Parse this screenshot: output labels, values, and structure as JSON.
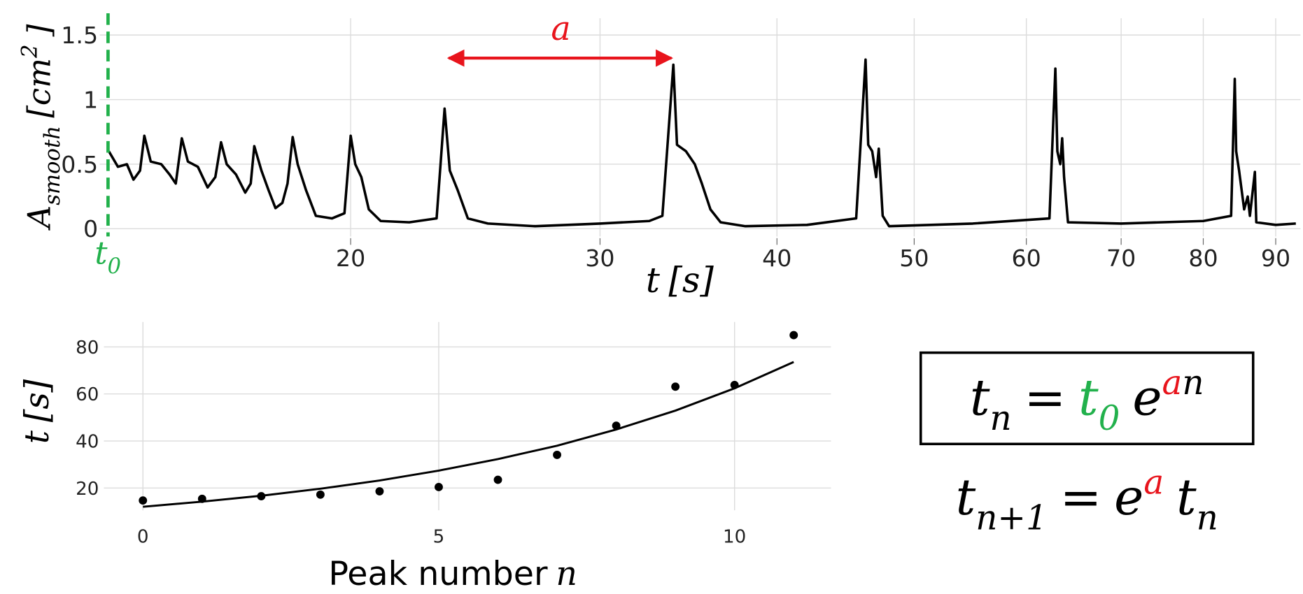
{
  "chart_data": [
    {
      "type": "line",
      "xscale": "log",
      "grid": true,
      "x": [
        13.5,
        13.7,
        13.9,
        14.05,
        14.2,
        14.3,
        14.45,
        14.7,
        14.9,
        15.05,
        15.2,
        15.35,
        15.6,
        15.85,
        16.05,
        16.2,
        16.35,
        16.6,
        16.85,
        17.0,
        17.1,
        17.3,
        17.5,
        17.7,
        17.9,
        18.05,
        18.2,
        18.35,
        18.6,
        18.9,
        19.4,
        19.8,
        20.0,
        20.15,
        20.35,
        20.6,
        21,
        22,
        23.0,
        23.3,
        23.5,
        23.8,
        24.2,
        25,
        27,
        30,
        32.5,
        33.2,
        33.8,
        34.0,
        34.5,
        35,
        35.4,
        35.9,
        36.5,
        38,
        42,
        45.5,
        46.2,
        46.4,
        46.7,
        47.0,
        47.2,
        47.5,
        48,
        55,
        62.3,
        62.9,
        63.1,
        63.4,
        63.6,
        63.8,
        64.2,
        70,
        80,
        83.7,
        84.2,
        84.4,
        84.8,
        85.5,
        86,
        86.3,
        87,
        87.2,
        90,
        93
      ],
      "series": [
        {
          "color": "#000000",
          "values": [
            0.6,
            0.48,
            0.5,
            0.38,
            0.45,
            0.72,
            0.52,
            0.5,
            0.42,
            0.35,
            0.7,
            0.52,
            0.48,
            0.32,
            0.4,
            0.67,
            0.5,
            0.42,
            0.28,
            0.35,
            0.64,
            0.45,
            0.3,
            0.16,
            0.2,
            0.35,
            0.71,
            0.5,
            0.3,
            0.1,
            0.08,
            0.12,
            0.72,
            0.5,
            0.4,
            0.15,
            0.06,
            0.05,
            0.08,
            0.93,
            0.45,
            0.3,
            0.08,
            0.04,
            0.02,
            0.04,
            0.06,
            0.1,
            1.27,
            0.65,
            0.6,
            0.5,
            0.35,
            0.15,
            0.05,
            0.02,
            0.03,
            0.08,
            1.31,
            0.65,
            0.6,
            0.4,
            0.62,
            0.1,
            0.02,
            0.04,
            0.08,
            1.24,
            0.6,
            0.5,
            0.7,
            0.4,
            0.05,
            0.04,
            0.06,
            0.1,
            1.16,
            0.6,
            0.45,
            0.15,
            0.25,
            0.1,
            0.44,
            0.05,
            0.03,
            0.04
          ]
        }
      ],
      "xlim": [
        13.3,
        93.7
      ],
      "xticks": [
        20,
        30,
        40,
        50,
        60,
        70,
        80,
        90
      ],
      "ylim": [
        -0.06,
        1.63
      ],
      "yticks": [
        0,
        0.5,
        1,
        1.5
      ],
      "x_label": [
        {
          "t": "t"
        },
        {
          "t": "[s]"
        }
      ],
      "y_label": [
        {
          "t": "A"
        },
        {
          "sub": "smooth"
        },
        {
          "t": "[cm"
        },
        {
          "sup": "2"
        },
        {
          "t": "]"
        }
      ],
      "t0_label": [
        {
          "t": "t",
          "color": "#22b14c"
        },
        {
          "sub": "0",
          "color": "#22b14c"
        }
      ],
      "t0_color": "#22b14c",
      "period_label": {
        "t": "a",
        "color": "#e8141c"
      }
    },
    {
      "type": "scatter",
      "grid": true,
      "x": [
        0,
        1,
        2,
        3,
        4,
        5,
        6,
        7,
        8,
        9,
        10,
        11
      ],
      "series": [
        {
          "type": "scatter",
          "color": "#000000",
          "values": [
            14.7,
            15.4,
            16.5,
            17.2,
            18.6,
            20.4,
            23.5,
            34.1,
            46.5,
            63.1,
            63.8,
            85
          ]
        },
        {
          "type": "line",
          "color": "#000000",
          "values": [
            12,
            14.2,
            16.7,
            19.7,
            23.2,
            27.4,
            32.3,
            38.0,
            44.9,
            52.9,
            62.4,
            73.6
          ]
        }
      ],
      "xlim": [
        -0.66,
        11.63
      ],
      "xticks": [
        0,
        5,
        10
      ],
      "ylim": [
        10.5,
        90.6
      ],
      "yticks": [
        20,
        40,
        60,
        80
      ],
      "x_label": [
        {
          "t": "Peak number"
        },
        {
          "t": "n",
          "math": true
        }
      ],
      "y_label": [
        {
          "t": "t"
        },
        {
          "t": "[s]"
        }
      ]
    }
  ],
  "equations": [
    [
      {
        "t": "t"
      },
      {
        "sub": "n"
      },
      {
        "t": "="
      },
      {
        "t": "t",
        "color": "#22b14c"
      },
      {
        "sub": "0",
        "color": "#22b14c"
      },
      {
        "t": "e"
      },
      {
        "sup": "a",
        "color": "#e8141c"
      },
      {
        "sup": "n"
      }
    ],
    [
      {
        "t": "t"
      },
      {
        "sub": "n+1"
      },
      {
        "t": "="
      },
      {
        "t": "e"
      },
      {
        "sup": "a",
        "color": "#e8141c"
      },
      {
        "t": "t"
      },
      {
        "sub": "n"
      }
    ]
  ]
}
